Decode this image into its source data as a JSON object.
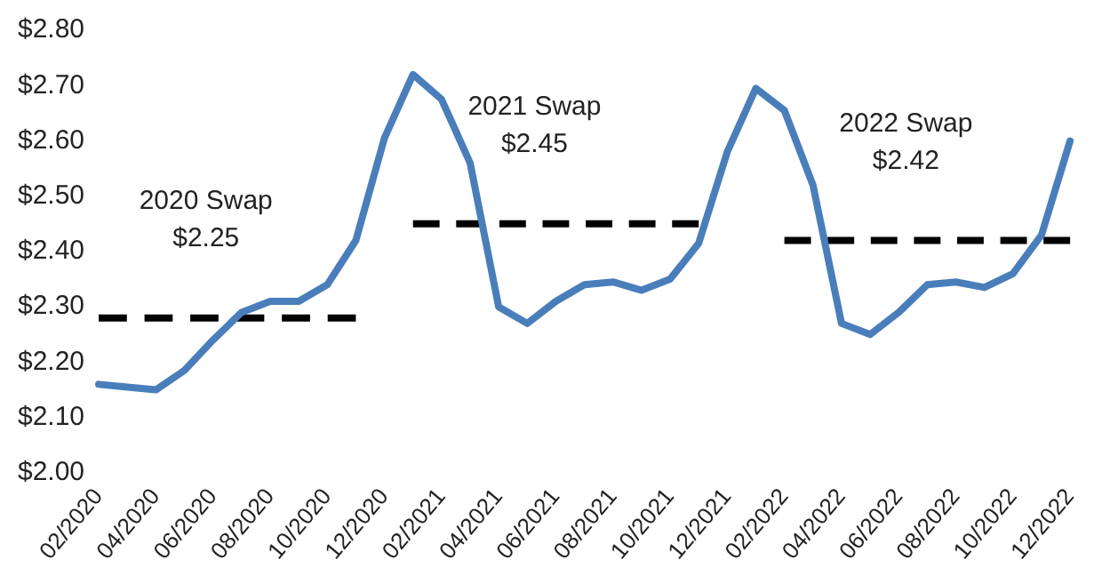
{
  "chart_data": {
    "type": "line",
    "categories": [
      "02/2020",
      null,
      "04/2020",
      null,
      "06/2020",
      null,
      "08/2020",
      null,
      "10/2020",
      null,
      "12/2020",
      null,
      "02/2021",
      null,
      "04/2021",
      null,
      "06/2021",
      null,
      "08/2021",
      null,
      "10/2021",
      null,
      "12/2021",
      null,
      "02/2022",
      null,
      "04/2022",
      null,
      "06/2022",
      null,
      "08/2022",
      null,
      "10/2022",
      null,
      "12/2022"
    ],
    "series": [
      {
        "color": "#4a7ebb",
        "line_style": "solid",
        "values": [
          2.16,
          2.155,
          2.15,
          2.185,
          2.24,
          2.29,
          2.31,
          2.31,
          2.34,
          2.42,
          2.605,
          2.72,
          2.675,
          2.56,
          2.3,
          2.27,
          2.31,
          2.34,
          2.345,
          2.33,
          2.35,
          2.415,
          2.58,
          2.695,
          2.655,
          2.52,
          2.27,
          2.25,
          2.29,
          2.34,
          2.345,
          2.335,
          2.36,
          2.43,
          2.6
        ]
      },
      {
        "color": "#000000",
        "line_style": "dashed",
        "values": [
          2.28,
          2.28,
          2.28,
          2.28,
          2.28,
          2.28,
          2.28,
          2.28,
          2.28,
          2.28,
          null,
          null,
          null,
          null,
          null,
          null,
          null,
          null,
          null,
          null,
          null,
          null,
          null,
          null,
          null,
          null,
          null,
          null,
          null,
          null,
          null,
          null,
          null,
          null,
          null
        ]
      },
      {
        "color": "#000000",
        "line_style": "dashed",
        "values": [
          null,
          null,
          null,
          null,
          null,
          null,
          null,
          null,
          null,
          null,
          null,
          2.45,
          2.45,
          2.45,
          2.45,
          2.45,
          2.45,
          2.45,
          2.45,
          2.45,
          2.45,
          2.45,
          null,
          null,
          null,
          null,
          null,
          null,
          null,
          null,
          null,
          null,
          null,
          null,
          null
        ]
      },
      {
        "color": "#000000",
        "line_style": "dashed",
        "values": [
          null,
          null,
          null,
          null,
          null,
          null,
          null,
          null,
          null,
          null,
          null,
          null,
          null,
          null,
          null,
          null,
          null,
          null,
          null,
          null,
          null,
          null,
          null,
          null,
          2.42,
          2.42,
          2.42,
          2.42,
          2.42,
          2.42,
          2.42,
          2.42,
          2.42,
          2.42,
          2.42
        ]
      }
    ],
    "ylim": [
      2.0,
      2.8
    ],
    "yticks": [
      {
        "value": 2.0,
        "label": "$2.00"
      },
      {
        "value": 2.1,
        "label": "$2.10"
      },
      {
        "value": 2.2,
        "label": "$2.20"
      },
      {
        "value": 2.3,
        "label": "$2.30"
      },
      {
        "value": 2.4,
        "label": "$2.40"
      },
      {
        "value": 2.5,
        "label": "$2.50"
      },
      {
        "value": 2.6,
        "label": "$2.60"
      },
      {
        "value": 2.7,
        "label": "$2.70"
      },
      {
        "value": 2.8,
        "label": "$2.80"
      }
    ],
    "annotations": [
      "2020 Swap\n$2.25",
      "2021 Swap\n$2.45",
      "2022 Swap\n$2.42"
    ],
    "grid": false,
    "legend": false,
    "marker": "none"
  }
}
